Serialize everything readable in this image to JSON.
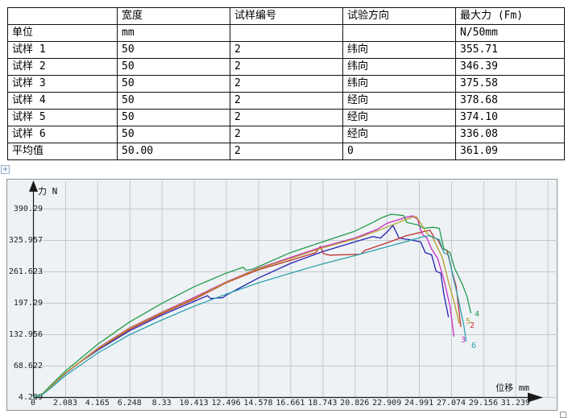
{
  "table": {
    "columns": [
      "",
      "宽度",
      "试样编号",
      "试验方向",
      "最大力 (Fm)"
    ],
    "rows": [
      {
        "label": "单位",
        "cells": [
          "mm",
          "",
          "",
          "N/50mm"
        ]
      },
      {
        "label": "试样 1",
        "cells": [
          "50",
          "2",
          "纬向",
          "355.71"
        ]
      },
      {
        "label": "试样 2",
        "cells": [
          "50",
          "2",
          "纬向",
          "346.39"
        ]
      },
      {
        "label": "试样 3",
        "cells": [
          "50",
          "2",
          "纬向",
          "375.58"
        ]
      },
      {
        "label": "试样 4",
        "cells": [
          "50",
          "2",
          "经向",
          "378.68"
        ]
      },
      {
        "label": "试样 5",
        "cells": [
          "50",
          "2",
          "经向",
          "374.10"
        ]
      },
      {
        "label": "试样 6",
        "cells": [
          "50",
          "2",
          "经向",
          "336.08"
        ]
      },
      {
        "label": "平均值",
        "cells": [
          "50.00",
          "2",
          "0",
          "361.09"
        ]
      }
    ]
  },
  "icons": {
    "move_glyph": "+"
  },
  "chart_data": {
    "type": "line",
    "title": "",
    "xlabel": "位移 mm",
    "ylabel": "力 N",
    "xlim": [
      0,
      33.322
    ],
    "ylim": [
      4.289,
      390.29
    ],
    "grid": true,
    "legend_position": "curve-end-labels",
    "x_ticks": [
      "0",
      "2.083",
      "4.165",
      "6.248",
      "8.33",
      "10.413",
      "12.496",
      "14.578",
      "16.661",
      "18.743",
      "20.826",
      "22.909",
      "24.991",
      "27.074",
      "29.156",
      "31.239"
    ],
    "y_ticks": [
      "4.289",
      "68.622",
      "132.956",
      "197.29",
      "261.623",
      "325.957",
      "390.29"
    ],
    "x_grid_extra": 33.322,
    "style": {
      "plot_bg": "#eef2f5",
      "grid_color": "#c3c8cc",
      "axis_color": "#1a1a1a",
      "tick_text_color": "#222222"
    },
    "series": [
      {
        "name": "试样 1",
        "max_force": 355.71,
        "color": "#2222b0",
        "end_label": "",
        "points": [
          [
            0,
            4.3
          ],
          [
            0.6,
            10
          ],
          [
            1.2,
            27
          ],
          [
            2.08,
            52
          ],
          [
            3.1,
            77
          ],
          [
            4.17,
            100
          ],
          [
            6.25,
            140
          ],
          [
            8.33,
            172
          ],
          [
            10.41,
            200
          ],
          [
            11.3,
            212
          ],
          [
            11.5,
            206
          ],
          [
            12.3,
            208
          ],
          [
            12.5,
            213
          ],
          [
            14.58,
            248
          ],
          [
            16.66,
            278
          ],
          [
            18.74,
            302
          ],
          [
            20.83,
            322
          ],
          [
            22.0,
            333
          ],
          [
            22.5,
            330
          ],
          [
            23.0,
            345
          ],
          [
            23.3,
            356
          ],
          [
            23.7,
            330
          ],
          [
            24.5,
            326
          ],
          [
            25.1,
            322
          ],
          [
            25.4,
            300
          ],
          [
            25.8,
            296
          ],
          [
            26.1,
            262
          ],
          [
            26.4,
            258
          ],
          [
            26.6,
            215
          ],
          [
            26.9,
            168
          ]
        ]
      },
      {
        "name": "试样 2",
        "max_force": 346.39,
        "color": "#c23030",
        "end_label": "2",
        "end_label_pos": [
          574,
          184
        ],
        "points": [
          [
            0,
            4.3
          ],
          [
            0.6,
            10
          ],
          [
            1.2,
            27
          ],
          [
            2.08,
            53
          ],
          [
            4.17,
            102
          ],
          [
            6.25,
            143
          ],
          [
            8.33,
            175
          ],
          [
            10.41,
            204
          ],
          [
            12.5,
            238
          ],
          [
            14.58,
            265
          ],
          [
            16.66,
            284
          ],
          [
            18.3,
            300
          ],
          [
            18.6,
            313
          ],
          [
            18.8,
            298
          ],
          [
            19.2,
            295
          ],
          [
            21.2,
            297
          ],
          [
            21.5,
            305
          ],
          [
            22.9,
            320
          ],
          [
            24.2,
            335
          ],
          [
            25.4,
            344
          ],
          [
            25.7,
            346
          ],
          [
            26.0,
            330
          ],
          [
            26.2,
            327
          ],
          [
            26.5,
            308
          ],
          [
            26.8,
            305
          ],
          [
            27.1,
            265
          ],
          [
            27.4,
            230
          ],
          [
            27.7,
            148
          ]
        ]
      },
      {
        "name": "试样 3",
        "max_force": 375.58,
        "color": "#cc2ac2",
        "end_label": "3",
        "end_label_pos": [
          563,
          202
        ],
        "points": [
          [
            0,
            4.3
          ],
          [
            0.6,
            10
          ],
          [
            1.2,
            27
          ],
          [
            2.08,
            53
          ],
          [
            4.17,
            104
          ],
          [
            6.25,
            146
          ],
          [
            8.33,
            178
          ],
          [
            10.41,
            208
          ],
          [
            12.5,
            240
          ],
          [
            14.58,
            268
          ],
          [
            16.66,
            290
          ],
          [
            18.74,
            312
          ],
          [
            20.83,
            330
          ],
          [
            22.3,
            348
          ],
          [
            22.9,
            360
          ],
          [
            23.5,
            366
          ],
          [
            24.2,
            373
          ],
          [
            24.6,
            375.5
          ],
          [
            24.9,
            368
          ],
          [
            25.2,
            338
          ],
          [
            25.5,
            330
          ],
          [
            25.8,
            308
          ],
          [
            26.2,
            288
          ],
          [
            26.6,
            245
          ],
          [
            27.0,
            190
          ],
          [
            27.25,
            128
          ]
        ]
      },
      {
        "name": "试样 4",
        "max_force": 378.68,
        "color": "#229c4a",
        "end_label": "4",
        "end_label_pos": [
          580,
          170
        ],
        "points": [
          [
            0,
            4.3
          ],
          [
            0.6,
            11
          ],
          [
            1.2,
            30
          ],
          [
            2.08,
            57
          ],
          [
            4.17,
            112
          ],
          [
            6.25,
            158
          ],
          [
            8.33,
            196
          ],
          [
            10.41,
            230
          ],
          [
            12.5,
            258
          ],
          [
            13.6,
            270
          ],
          [
            13.8,
            264
          ],
          [
            14.2,
            266
          ],
          [
            16.66,
            300
          ],
          [
            18.74,
            322
          ],
          [
            20.83,
            344
          ],
          [
            22.0,
            362
          ],
          [
            22.6,
            372
          ],
          [
            23.2,
            378.7
          ],
          [
            24.0,
            376
          ],
          [
            24.2,
            362
          ],
          [
            24.9,
            357
          ],
          [
            25.3,
            350
          ],
          [
            25.9,
            352
          ],
          [
            26.3,
            350
          ],
          [
            26.6,
            308
          ],
          [
            27.0,
            300
          ],
          [
            27.3,
            268
          ],
          [
            27.8,
            235
          ],
          [
            28.1,
            210
          ],
          [
            28.35,
            176
          ]
        ]
      },
      {
        "name": "试样 5",
        "max_force": 374.1,
        "color": "#b4a02a",
        "end_label": "5",
        "end_label_pos": [
          569,
          179
        ],
        "points": [
          [
            0,
            4.3
          ],
          [
            0.6,
            10
          ],
          [
            1.2,
            27
          ],
          [
            2.08,
            53
          ],
          [
            4.17,
            103
          ],
          [
            6.25,
            145
          ],
          [
            8.33,
            177
          ],
          [
            10.41,
            206
          ],
          [
            12.5,
            239
          ],
          [
            14.58,
            267
          ],
          [
            16.66,
            288
          ],
          [
            18.74,
            310
          ],
          [
            20.83,
            328
          ],
          [
            22.3,
            345
          ],
          [
            23.2,
            356
          ],
          [
            23.9,
            365
          ],
          [
            24.5,
            372
          ],
          [
            24.8,
            374
          ],
          [
            25.1,
            360
          ],
          [
            25.5,
            340
          ],
          [
            25.9,
            330
          ],
          [
            26.2,
            310
          ],
          [
            26.5,
            290
          ],
          [
            26.9,
            240
          ],
          [
            27.3,
            195
          ],
          [
            27.6,
            154
          ]
        ]
      },
      {
        "name": "试样 6",
        "max_force": 336.08,
        "color": "#2da2ae",
        "end_label": "6",
        "end_label_pos": [
          576,
          209
        ],
        "points": [
          [
            0,
            4.3
          ],
          [
            0.6,
            9
          ],
          [
            1.2,
            24
          ],
          [
            2.08,
            48
          ],
          [
            4.17,
            94
          ],
          [
            6.25,
            132
          ],
          [
            8.33,
            162
          ],
          [
            10.41,
            190
          ],
          [
            12.5,
            215
          ],
          [
            14.58,
            238
          ],
          [
            16.66,
            258
          ],
          [
            18.74,
            277
          ],
          [
            20.83,
            294
          ],
          [
            22.9,
            312
          ],
          [
            24.3,
            324
          ],
          [
            25.2,
            332
          ],
          [
            25.7,
            335
          ],
          [
            26.0,
            330
          ],
          [
            26.3,
            327
          ],
          [
            26.6,
            300
          ],
          [
            26.9,
            295
          ],
          [
            27.2,
            250
          ],
          [
            27.5,
            210
          ],
          [
            27.9,
            150
          ],
          [
            28.05,
            118
          ]
        ]
      }
    ]
  }
}
